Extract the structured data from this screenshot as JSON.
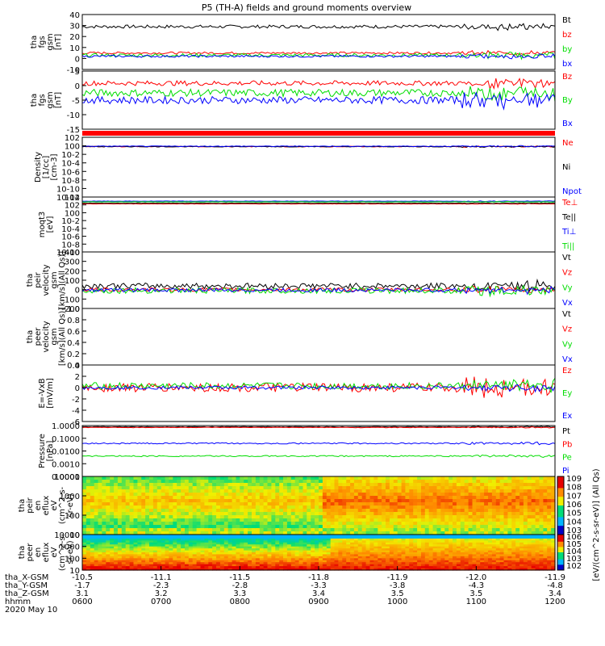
{
  "title": "P5 (TH-A) fields and ground moments overview",
  "colors": {
    "black": "#000000",
    "red": "#ff0000",
    "green": "#00dd00",
    "blue": "#0000ff"
  },
  "chart_data": [
    {
      "type": "line",
      "id": "fgs_gsm",
      "ylabel": [
        "tha",
        "fgs",
        "gsm",
        "[nT]"
      ],
      "ylim": [
        -10,
        40
      ],
      "ticks": [
        "40",
        "30",
        "20",
        "10",
        "0",
        "-10"
      ],
      "series": [
        {
          "name": "Bt",
          "color": "#000000",
          "level": 29,
          "noise": 1.5
        },
        {
          "name": "bz",
          "color": "#ff0000",
          "level": 5,
          "noise": 1
        },
        {
          "name": "by",
          "color": "#00dd00",
          "level": 3,
          "noise": 1.5
        },
        {
          "name": "bx",
          "color": "#0000ff",
          "level": 2,
          "noise": 1
        }
      ]
    },
    {
      "type": "line",
      "id": "fgs_gse",
      "ylabel": [
        "tha",
        "fgs",
        "gsm",
        "[nT]"
      ],
      "ylim": [
        -17,
        7
      ],
      "ticks": [
        "5",
        "0",
        "-5",
        "-10",
        "-15"
      ],
      "series": [
        {
          "name": "Bz",
          "color": "#ff0000",
          "level": 2,
          "noise": 1
        },
        {
          "name": "By",
          "color": "#00dd00",
          "level": -2,
          "noise": 1.5
        },
        {
          "name": "Bx",
          "color": "#0000ff",
          "level": -5,
          "noise": 1.5
        }
      ]
    },
    {
      "type": "line",
      "id": "density",
      "ylabel": [
        "Density",
        "[1/cc]",
        "[cm-3]"
      ],
      "ylim": [
        -13,
        3
      ],
      "log": true,
      "ticks": [
        "10^2",
        "10^0",
        "10^-2",
        "10^-4",
        "10^-6",
        "10^-8",
        "10^-10",
        "10^-12"
      ],
      "series": [
        {
          "name": "Ne",
          "color": "#ff0000",
          "level": 0.5,
          "noise": 0.1
        },
        {
          "name": "Ni",
          "color": "#000000",
          "level": 0.5,
          "noise": 0.1
        },
        {
          "name": "Npot",
          "color": "#0000ff",
          "level": 0.6,
          "noise": 0.1
        }
      ]
    },
    {
      "type": "line",
      "id": "temperature",
      "ylabel": [
        "moqt3",
        "[eV]"
      ],
      "ylim": [
        -11,
        5
      ],
      "log": true,
      "ticks": [
        "10^4",
        "10^2",
        "10^0",
        "10^-2",
        "10^-4",
        "10^-6",
        "10^-8",
        "10^-10"
      ],
      "series": [
        {
          "name": "Te⊥",
          "color": "#ff0000",
          "level": 3,
          "noise": 0.05
        },
        {
          "name": "Te||",
          "color": "#000000",
          "level": 3.2,
          "noise": 0.05
        },
        {
          "name": "Ti⊥",
          "color": "#0000ff",
          "level": 3.8,
          "noise": 0.05
        },
        {
          "name": "Ti||",
          "color": "#00dd00",
          "level": 3.6,
          "noise": 0.05
        }
      ]
    },
    {
      "type": "line",
      "id": "peir_velocity",
      "ylabel": [
        "tha",
        "peir",
        "velocity",
        "gsm",
        "[km/s](All Qs)]"
      ],
      "ylim": [
        -200,
        400
      ],
      "ticks": [
        "400",
        "300",
        "200",
        "100",
        "0",
        "-100",
        "-200"
      ],
      "series": [
        {
          "name": "Vt",
          "color": "#000000",
          "level": 40,
          "noise": 30
        },
        {
          "name": "Vz",
          "color": "#ff0000",
          "level": 0,
          "noise": 20
        },
        {
          "name": "Vy",
          "color": "#00dd00",
          "level": -10,
          "noise": 30
        },
        {
          "name": "Vx",
          "color": "#0000ff",
          "level": -5,
          "noise": 20
        }
      ]
    },
    {
      "type": "line",
      "id": "peer_velocity",
      "ylabel": [
        "tha",
        "peer",
        "velocity",
        "gsm",
        "[km/s](All Qs)]"
      ],
      "ylim": [
        0,
        1
      ],
      "ticks": [
        "1.0",
        "0.8",
        "0.6",
        "0.4",
        "0.2",
        "0.0"
      ],
      "series": [
        {
          "name": "Vt",
          "color": "#000000"
        },
        {
          "name": "Vz",
          "color": "#ff0000"
        },
        {
          "name": "Vy",
          "color": "#00dd00"
        },
        {
          "name": "Vx",
          "color": "#0000ff"
        }
      ]
    },
    {
      "type": "line",
      "id": "efield",
      "ylabel": [
        "E=-VxB",
        "[mV/m]"
      ],
      "ylim": [
        -6,
        4
      ],
      "ticks": [
        "4",
        "2",
        "0",
        "-2",
        "-4",
        "-6"
      ],
      "series": [
        {
          "name": "Ez",
          "color": "#ff0000",
          "level": 0,
          "noise": 0.8
        },
        {
          "name": "Ey",
          "color": "#00dd00",
          "level": 0.3,
          "noise": 0.6
        },
        {
          "name": "Ex",
          "color": "#0000ff",
          "level": 0,
          "noise": 0.3
        }
      ]
    },
    {
      "type": "line",
      "id": "pressure",
      "ylabel": [
        "Pressure",
        "[nPa]"
      ],
      "ylim": [
        -4,
        0
      ],
      "log": true,
      "ticks": [
        "1.0000",
        "0.1000",
        "0.0100",
        "0.0010",
        "0.0001"
      ],
      "series": [
        {
          "name": "Pt",
          "color": "#000000",
          "level": -0.1,
          "noise": 0.02
        },
        {
          "name": "Pb",
          "color": "#ff0000",
          "level": -0.15,
          "noise": 0.02
        },
        {
          "name": "Pe",
          "color": "#00dd00",
          "level": -2.4,
          "noise": 0.05
        },
        {
          "name": "Pi",
          "color": "#0000ff",
          "level": -1.4,
          "noise": 0.05
        }
      ]
    },
    {
      "type": "heatmap",
      "id": "peir_en_eflux",
      "ylabel": [
        "tha",
        "peir",
        "en",
        "eflux",
        "eV",
        "(cm^2-s-",
        "sr-eV)"
      ],
      "ylim": [
        1,
        4.3
      ],
      "log": true,
      "ticks": [
        "10000",
        "1000",
        "100",
        "10"
      ]
    },
    {
      "type": "heatmap",
      "id": "peer_en_eflux",
      "ylabel": [
        "tha",
        "peer",
        "en",
        "eflux",
        "eV",
        "(cm^2-s-",
        "sr-eV)"
      ],
      "ylim": [
        0.7,
        4.3
      ],
      "log": true,
      "ticks": [
        "10000",
        "1000",
        "100",
        "10"
      ]
    }
  ],
  "colorbar": {
    "top_ticks": [
      "10^9",
      "10^8",
      "10^7",
      "10^6",
      "10^5",
      "10^4",
      "10^3"
    ],
    "bottom_ticks": [
      "10^6",
      "10^5",
      "10^4",
      "10^3",
      "10^2"
    ],
    "label": "[eV/(cm^2-s-sr-eV)] (All Qs)"
  },
  "x_axis": {
    "ticks": [
      "0600",
      "0700",
      "0800",
      "0900",
      "1000",
      "1100",
      "1200"
    ],
    "eph_rows": [
      {
        "label": "tha_X-GSM",
        "values": [
          "-10.5",
          "-11.1",
          "-11.5",
          "-11.8",
          "-11.9",
          "-12.0",
          "-11.9"
        ]
      },
      {
        "label": "tha_Y-GSM",
        "values": [
          "-1.7",
          "-2.3",
          "-2.8",
          "-3.3",
          "-3.8",
          "-4.3",
          "-4.8"
        ]
      },
      {
        "label": "tha_Z-GSM",
        "values": [
          "3.1",
          "3.2",
          "3.3",
          "3.4",
          "3.5",
          "3.5",
          "3.4"
        ]
      },
      {
        "label": "hhmm",
        "values": [
          "0600",
          "0700",
          "0800",
          "0900",
          "1000",
          "1100",
          "1200"
        ]
      }
    ],
    "date": "2020 May 10"
  }
}
